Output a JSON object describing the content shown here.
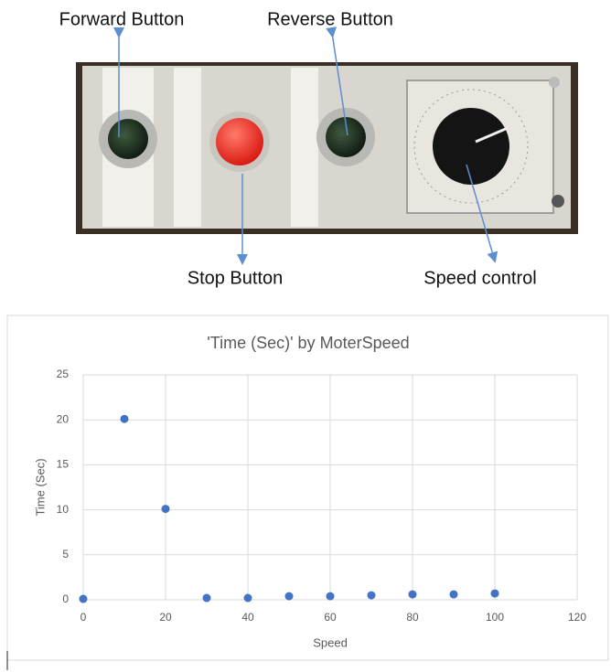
{
  "photo": {
    "labels": [
      "Forward Button",
      "Reverse Button",
      "Stop Button",
      "Speed control"
    ]
  },
  "chart_data": {
    "type": "scatter",
    "title": "'Time (Sec)' by  MoterSpeed",
    "x_label": "Speed",
    "y_label": "Time (Sec)",
    "series": [
      {
        "name": "Time (Sec)",
        "color": "#4472c4",
        "x": [
          0,
          10,
          20,
          30,
          40,
          50,
          60,
          70,
          80,
          90,
          100
        ],
        "values": [
          0.1,
          20.1,
          10.1,
          0.2,
          0.2,
          0.4,
          0.4,
          0.5,
          0.6,
          0.6,
          0.7
        ]
      }
    ],
    "xlim": [
      0,
      120
    ],
    "xticks": [
      0,
      20,
      40,
      60,
      80,
      100,
      120
    ],
    "ylim": [
      0,
      25
    ],
    "yticks": [
      0,
      5,
      10,
      15,
      20,
      25
    ],
    "grid": true
  }
}
